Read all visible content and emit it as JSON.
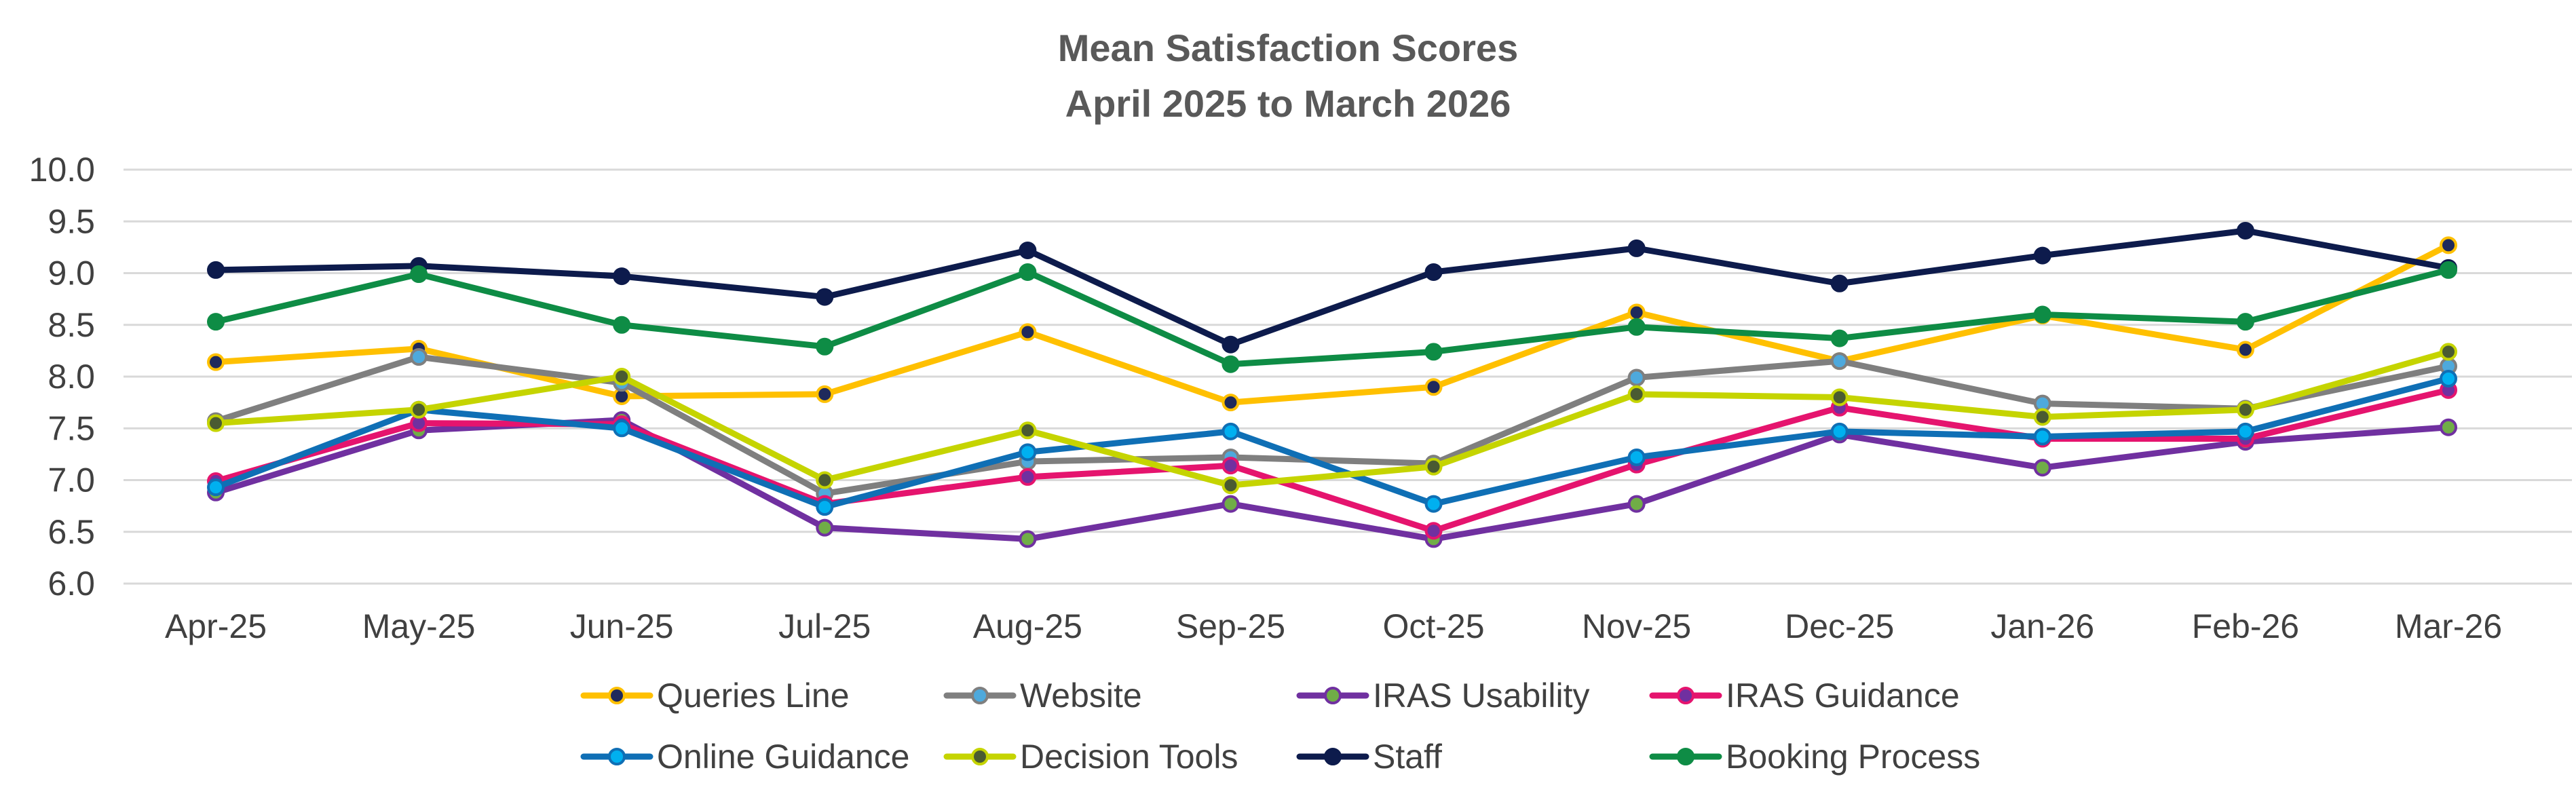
{
  "chart_data": {
    "type": "line",
    "title": [
      "Mean Satisfaction Scores",
      "April 2025 to March 2026"
    ],
    "xlabel": "",
    "ylabel": "",
    "ylim": [
      6.0,
      10.0
    ],
    "yticks": [
      "6.0",
      "6.5",
      "7.0",
      "7.5",
      "8.0",
      "8.5",
      "9.0",
      "9.5",
      "10.0"
    ],
    "grid": true,
    "legend_position": "bottom",
    "categories": [
      "Apr-25",
      "May-25",
      "Jun-25",
      "Jul-25",
      "Aug-25",
      "Sep-25",
      "Oct-25",
      "Nov-25",
      "Dec-25",
      "Jan-26",
      "Feb-26",
      "Mar-26"
    ],
    "series": [
      {
        "name": "Queries Line",
        "color": "#FFC000",
        "marker": "#1F2A5C",
        "values": [
          8.14,
          8.27,
          7.81,
          7.83,
          8.43,
          7.75,
          7.9,
          8.62,
          8.15,
          8.59,
          8.26,
          9.27
        ]
      },
      {
        "name": "Website",
        "color": "#7F7F7F",
        "marker": "#4EA9DC",
        "values": [
          7.57,
          8.19,
          7.94,
          6.87,
          7.18,
          7.22,
          7.16,
          7.99,
          8.15,
          7.74,
          7.69,
          8.1
        ]
      },
      {
        "name": "IRAS Usability",
        "color": "#7030A0",
        "marker": "#70AD47",
        "values": [
          6.88,
          7.48,
          7.58,
          6.54,
          6.43,
          6.77,
          6.43,
          6.77,
          7.44,
          7.12,
          7.37,
          7.51
        ]
      },
      {
        "name": "IRAS Guidance",
        "color": "#E5146E",
        "marker": "#7030A0",
        "values": [
          6.99,
          7.55,
          7.54,
          6.77,
          7.03,
          7.14,
          6.51,
          7.15,
          7.7,
          7.4,
          7.4,
          7.87
        ]
      },
      {
        "name": "Online Guidance",
        "color": "#0F6FB5",
        "marker": "#00B0F0",
        "values": [
          6.93,
          7.68,
          7.5,
          6.74,
          7.27,
          7.47,
          6.77,
          7.22,
          7.47,
          7.42,
          7.47,
          7.98
        ]
      },
      {
        "name": "Decision Tools",
        "color": "#C5D400",
        "marker": "#4A5B32",
        "values": [
          7.55,
          7.68,
          8.0,
          7.0,
          7.48,
          6.95,
          7.13,
          7.83,
          7.8,
          7.61,
          7.68,
          8.24
        ]
      },
      {
        "name": "Staff",
        "color": "#0D1B4C",
        "marker": "#0D1B4C",
        "values": [
          9.03,
          9.07,
          8.97,
          8.77,
          9.22,
          8.31,
          9.01,
          9.24,
          8.9,
          9.17,
          9.41,
          9.05
        ]
      },
      {
        "name": "Booking Process",
        "color": "#0E8C45",
        "marker": "#0E8C45",
        "values": [
          8.53,
          8.99,
          8.5,
          8.29,
          9.01,
          8.12,
          8.24,
          8.48,
          8.37,
          8.6,
          8.53,
          9.03
        ]
      }
    ]
  }
}
